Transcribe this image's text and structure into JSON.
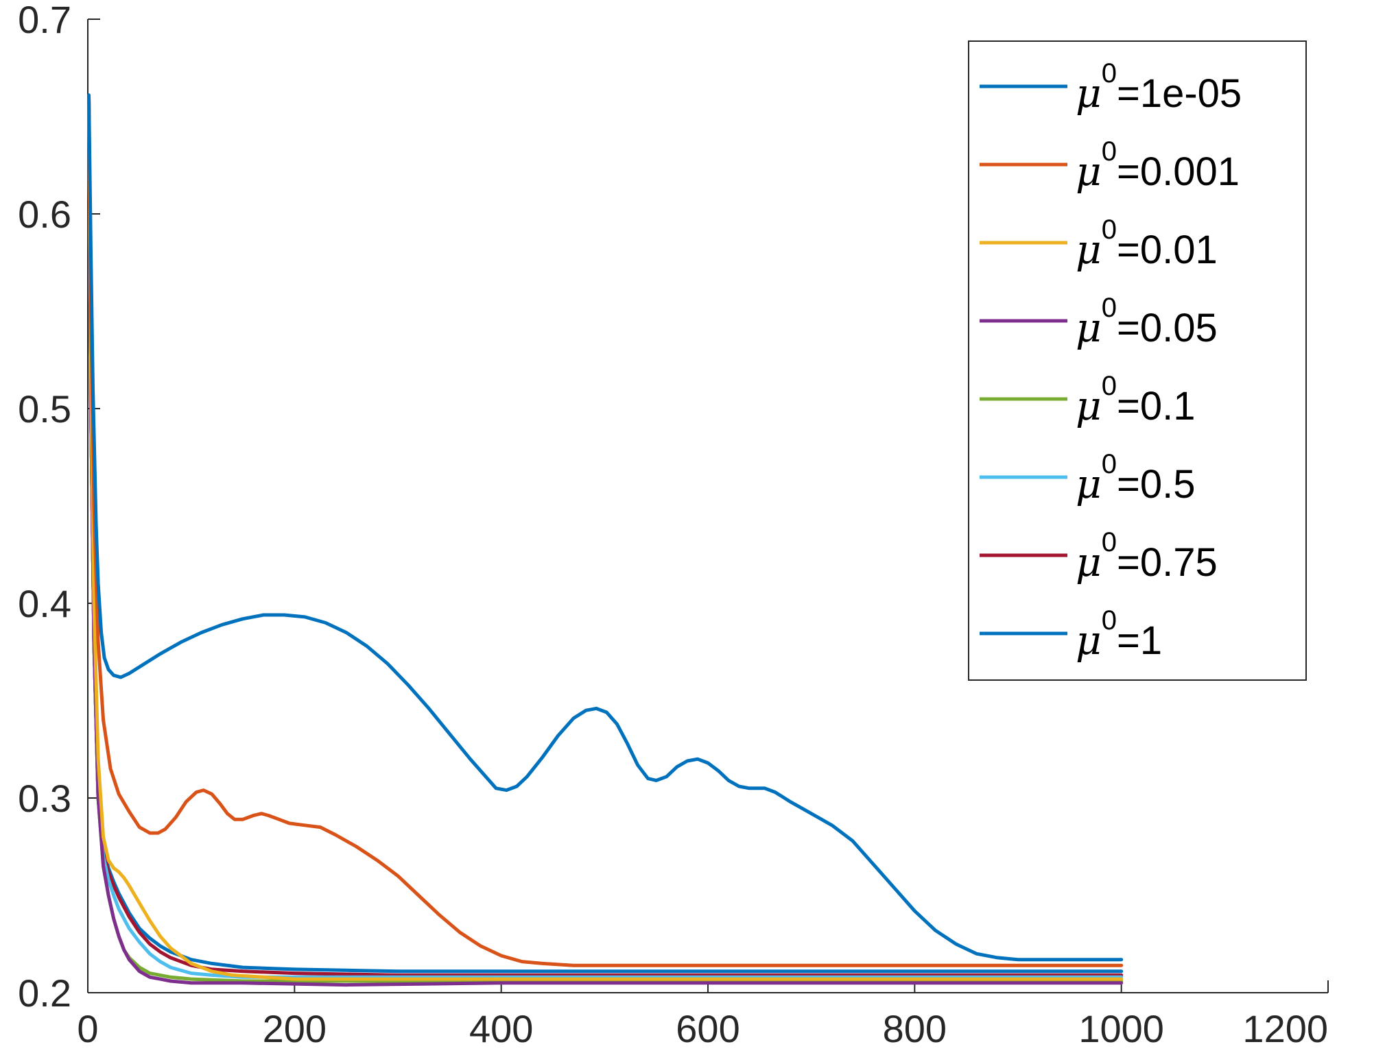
{
  "chart_data": {
    "type": "line",
    "title": "",
    "xlabel": "",
    "ylabel": "",
    "xlim": [
      0,
      1200
    ],
    "ylim": [
      0.2,
      0.7
    ],
    "xticks": [
      0,
      200,
      400,
      600,
      800,
      1000,
      1200
    ],
    "yticks": [
      0.2,
      0.3,
      0.4,
      0.5,
      0.6,
      0.7
    ],
    "xtick_labels": [
      "0",
      "200",
      "400",
      "600",
      "800",
      "1000",
      "1200"
    ],
    "ytick_labels": [
      "0.2",
      "0.3",
      "0.4",
      "0.5",
      "0.6",
      "0.7"
    ],
    "grid": false,
    "legend_position": "top-right",
    "series": [
      {
        "name": "μ0=1e-05",
        "legend_value": "=1e-05",
        "color": "#0072BD",
        "points": [
          [
            1,
            0.661
          ],
          [
            3,
            0.58
          ],
          [
            5,
            0.51
          ],
          [
            8,
            0.44
          ],
          [
            10,
            0.41
          ],
          [
            13,
            0.385
          ],
          [
            16,
            0.372
          ],
          [
            20,
            0.366
          ],
          [
            25,
            0.363
          ],
          [
            32,
            0.362
          ],
          [
            40,
            0.364
          ],
          [
            55,
            0.369
          ],
          [
            70,
            0.374
          ],
          [
            90,
            0.38
          ],
          [
            110,
            0.385
          ],
          [
            130,
            0.389
          ],
          [
            150,
            0.392
          ],
          [
            170,
            0.394
          ],
          [
            190,
            0.394
          ],
          [
            210,
            0.393
          ],
          [
            230,
            0.39
          ],
          [
            250,
            0.385
          ],
          [
            270,
            0.378
          ],
          [
            290,
            0.369
          ],
          [
            310,
            0.358
          ],
          [
            330,
            0.346
          ],
          [
            350,
            0.333
          ],
          [
            370,
            0.32
          ],
          [
            385,
            0.311
          ],
          [
            395,
            0.305
          ],
          [
            405,
            0.304
          ],
          [
            415,
            0.306
          ],
          [
            425,
            0.311
          ],
          [
            440,
            0.321
          ],
          [
            455,
            0.332
          ],
          [
            470,
            0.341
          ],
          [
            482,
            0.345
          ],
          [
            492,
            0.346
          ],
          [
            502,
            0.344
          ],
          [
            512,
            0.338
          ],
          [
            522,
            0.328
          ],
          [
            532,
            0.317
          ],
          [
            542,
            0.31
          ],
          [
            550,
            0.309
          ],
          [
            560,
            0.311
          ],
          [
            570,
            0.316
          ],
          [
            580,
            0.319
          ],
          [
            590,
            0.32
          ],
          [
            600,
            0.318
          ],
          [
            610,
            0.314
          ],
          [
            620,
            0.309
          ],
          [
            630,
            0.306
          ],
          [
            640,
            0.305
          ],
          [
            655,
            0.305
          ],
          [
            665,
            0.303
          ],
          [
            680,
            0.298
          ],
          [
            700,
            0.292
          ],
          [
            720,
            0.286
          ],
          [
            740,
            0.278
          ],
          [
            760,
            0.266
          ],
          [
            780,
            0.254
          ],
          [
            800,
            0.242
          ],
          [
            820,
            0.232
          ],
          [
            840,
            0.225
          ],
          [
            860,
            0.22
          ],
          [
            880,
            0.218
          ],
          [
            900,
            0.217
          ],
          [
            940,
            0.217
          ],
          [
            1000,
            0.217
          ]
        ]
      },
      {
        "name": "μ0=0.001",
        "legend_value": "=0.001",
        "color": "#D95319",
        "points": [
          [
            1,
            0.66
          ],
          [
            3,
            0.55
          ],
          [
            6,
            0.45
          ],
          [
            10,
            0.38
          ],
          [
            15,
            0.34
          ],
          [
            22,
            0.315
          ],
          [
            30,
            0.302
          ],
          [
            40,
            0.293
          ],
          [
            50,
            0.285
          ],
          [
            60,
            0.282
          ],
          [
            68,
            0.282
          ],
          [
            75,
            0.284
          ],
          [
            85,
            0.29
          ],
          [
            95,
            0.298
          ],
          [
            105,
            0.303
          ],
          [
            112,
            0.304
          ],
          [
            120,
            0.302
          ],
          [
            128,
            0.297
          ],
          [
            135,
            0.292
          ],
          [
            142,
            0.289
          ],
          [
            150,
            0.289
          ],
          [
            160,
            0.291
          ],
          [
            168,
            0.292
          ],
          [
            175,
            0.291
          ],
          [
            185,
            0.289
          ],
          [
            195,
            0.287
          ],
          [
            210,
            0.286
          ],
          [
            225,
            0.285
          ],
          [
            240,
            0.281
          ],
          [
            260,
            0.275
          ],
          [
            280,
            0.268
          ],
          [
            300,
            0.26
          ],
          [
            320,
            0.25
          ],
          [
            340,
            0.24
          ],
          [
            360,
            0.231
          ],
          [
            380,
            0.224
          ],
          [
            400,
            0.219
          ],
          [
            420,
            0.216
          ],
          [
            440,
            0.215
          ],
          [
            470,
            0.214
          ],
          [
            500,
            0.214
          ],
          [
            550,
            0.214
          ],
          [
            600,
            0.214
          ],
          [
            650,
            0.214
          ],
          [
            700,
            0.214
          ],
          [
            800,
            0.214
          ],
          [
            900,
            0.214
          ],
          [
            1000,
            0.214
          ]
        ]
      },
      {
        "name": "μ0=0.01",
        "legend_value": "=0.01",
        "color": "#EDB120",
        "points": [
          [
            1,
            0.66
          ],
          [
            3,
            0.52
          ],
          [
            6,
            0.4
          ],
          [
            10,
            0.32
          ],
          [
            15,
            0.28
          ],
          [
            20,
            0.268
          ],
          [
            25,
            0.264
          ],
          [
            30,
            0.262
          ],
          [
            35,
            0.259
          ],
          [
            40,
            0.255
          ],
          [
            50,
            0.246
          ],
          [
            60,
            0.237
          ],
          [
            70,
            0.229
          ],
          [
            80,
            0.223
          ],
          [
            90,
            0.219
          ],
          [
            100,
            0.215
          ],
          [
            120,
            0.211
          ],
          [
            140,
            0.209
          ],
          [
            170,
            0.208
          ],
          [
            200,
            0.207
          ],
          [
            300,
            0.207
          ],
          [
            500,
            0.207
          ],
          [
            700,
            0.207
          ],
          [
            1000,
            0.207
          ]
        ]
      },
      {
        "name": "μ0=0.05",
        "legend_value": "=0.05",
        "color": "#7E2F8E",
        "points": [
          [
            1,
            0.66
          ],
          [
            3,
            0.5
          ],
          [
            6,
            0.38
          ],
          [
            10,
            0.3
          ],
          [
            15,
            0.265
          ],
          [
            20,
            0.25
          ],
          [
            25,
            0.238
          ],
          [
            30,
            0.229
          ],
          [
            35,
            0.222
          ],
          [
            40,
            0.217
          ],
          [
            50,
            0.211
          ],
          [
            60,
            0.208
          ],
          [
            70,
            0.207
          ],
          [
            80,
            0.206
          ],
          [
            100,
            0.205
          ],
          [
            150,
            0.205
          ],
          [
            250,
            0.204
          ],
          [
            400,
            0.205
          ],
          [
            600,
            0.205
          ],
          [
            800,
            0.205
          ],
          [
            1000,
            0.205
          ]
        ]
      },
      {
        "name": "μ0=0.1",
        "legend_value": "=0.1",
        "color": "#77AC30",
        "points": [
          [
            1,
            0.66
          ],
          [
            3,
            0.5
          ],
          [
            6,
            0.38
          ],
          [
            10,
            0.3
          ],
          [
            15,
            0.265
          ],
          [
            20,
            0.25
          ],
          [
            25,
            0.238
          ],
          [
            30,
            0.229
          ],
          [
            35,
            0.222
          ],
          [
            40,
            0.218
          ],
          [
            50,
            0.213
          ],
          [
            60,
            0.21
          ],
          [
            70,
            0.209
          ],
          [
            80,
            0.208
          ],
          [
            100,
            0.207
          ],
          [
            150,
            0.206
          ],
          [
            250,
            0.206
          ],
          [
            500,
            0.206
          ],
          [
            1000,
            0.206
          ]
        ]
      },
      {
        "name": "μ0=0.5",
        "legend_value": "=0.5",
        "color": "#4DBEEE",
        "points": [
          [
            1,
            0.66
          ],
          [
            3,
            0.5
          ],
          [
            6,
            0.38
          ],
          [
            10,
            0.3
          ],
          [
            15,
            0.27
          ],
          [
            20,
            0.258
          ],
          [
            25,
            0.25
          ],
          [
            30,
            0.243
          ],
          [
            40,
            0.233
          ],
          [
            50,
            0.226
          ],
          [
            60,
            0.22
          ],
          [
            70,
            0.216
          ],
          [
            80,
            0.213
          ],
          [
            100,
            0.21
          ],
          [
            120,
            0.209
          ],
          [
            150,
            0.208
          ],
          [
            200,
            0.208
          ],
          [
            300,
            0.208
          ],
          [
            500,
            0.208
          ],
          [
            1000,
            0.208
          ]
        ]
      },
      {
        "name": "μ0=0.75",
        "legend_value": "=0.75",
        "color": "#A2142F",
        "points": [
          [
            1,
            0.66
          ],
          [
            3,
            0.5
          ],
          [
            6,
            0.38
          ],
          [
            10,
            0.3
          ],
          [
            15,
            0.272
          ],
          [
            20,
            0.262
          ],
          [
            25,
            0.255
          ],
          [
            30,
            0.249
          ],
          [
            40,
            0.239
          ],
          [
            50,
            0.231
          ],
          [
            60,
            0.225
          ],
          [
            70,
            0.221
          ],
          [
            80,
            0.218
          ],
          [
            100,
            0.214
          ],
          [
            120,
            0.212
          ],
          [
            150,
            0.211
          ],
          [
            200,
            0.21
          ],
          [
            300,
            0.209
          ],
          [
            500,
            0.209
          ],
          [
            1000,
            0.209
          ]
        ]
      },
      {
        "name": "μ0=1",
        "legend_value": "=1",
        "color": "#0072BD",
        "points": [
          [
            1,
            0.66
          ],
          [
            3,
            0.5
          ],
          [
            6,
            0.38
          ],
          [
            10,
            0.3
          ],
          [
            15,
            0.274
          ],
          [
            20,
            0.264
          ],
          [
            25,
            0.257
          ],
          [
            30,
            0.251
          ],
          [
            40,
            0.241
          ],
          [
            50,
            0.233
          ],
          [
            60,
            0.228
          ],
          [
            70,
            0.224
          ],
          [
            80,
            0.221
          ],
          [
            100,
            0.217
          ],
          [
            120,
            0.215
          ],
          [
            150,
            0.213
          ],
          [
            200,
            0.212
          ],
          [
            300,
            0.211
          ],
          [
            500,
            0.211
          ],
          [
            1000,
            0.211
          ]
        ]
      }
    ]
  }
}
